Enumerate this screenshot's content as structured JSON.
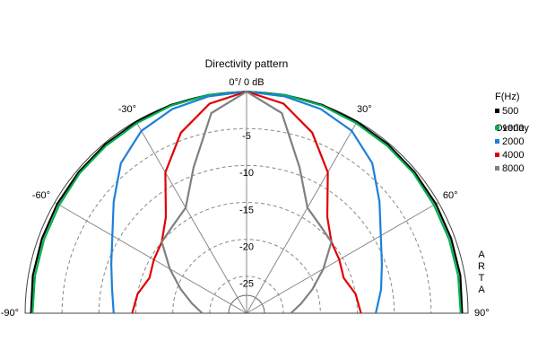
{
  "chart_data": {
    "type": "polar-half",
    "title": "Directivity pattern",
    "legend_title": "F(Hz)",
    "overlay_title": "Overlay",
    "watermark": "ARTA",
    "rlim": [
      -30,
      0
    ],
    "rticks": [
      -5,
      -10,
      -15,
      -20,
      -25
    ],
    "angle_ticks": [
      {
        "value": -90,
        "label": "-90°"
      },
      {
        "value": -60,
        "label": "-60°"
      },
      {
        "value": -30,
        "label": "-30°"
      },
      {
        "value": 0,
        "label": "0°/ 0 dB"
      },
      {
        "value": 30,
        "label": "30°"
      },
      {
        "value": 60,
        "label": "60°"
      },
      {
        "value": 90,
        "label": "90°"
      }
    ],
    "angles": [
      -90,
      -80,
      -70,
      -60,
      -50,
      -40,
      -30,
      -20,
      -10,
      0,
      10,
      20,
      30,
      40,
      50,
      60,
      70,
      80,
      90
    ],
    "series": [
      {
        "name": "500",
        "color": "#000000",
        "values": [
          -0.8,
          -0.6,
          -0.5,
          -0.4,
          -0.3,
          -0.2,
          -0.1,
          0,
          0,
          0,
          0,
          0,
          -0.1,
          -0.2,
          -0.3,
          -0.4,
          -0.5,
          -0.6,
          -0.8
        ]
      },
      {
        "name": "1000",
        "color": "#00b050",
        "values": [
          -1,
          -0.9,
          -0.8,
          -0.7,
          -0.5,
          -0.4,
          -0.3,
          -0.1,
          0,
          0,
          0,
          -0.1,
          -0.3,
          -0.4,
          -0.5,
          -0.7,
          -0.8,
          -0.9,
          -1
        ]
      },
      {
        "name": "2000",
        "color": "#1e7fd8",
        "values": [
          -12,
          -11.5,
          -10.5,
          -9,
          -6.5,
          -3.5,
          -1.5,
          -0.6,
          -0.2,
          0,
          -0.2,
          -0.6,
          -1.5,
          -3.5,
          -6.5,
          -9,
          -10.5,
          -11.5,
          -12.5
        ]
      },
      {
        "name": "4000",
        "color": "#e00000",
        "values": [
          -14.5,
          -15,
          -16,
          -15.5,
          -15,
          -13,
          -8,
          -4,
          -1.2,
          0,
          -1.2,
          -4,
          -8,
          -13,
          -15,
          -15.5,
          -16,
          -15,
          -14.5
        ]
      },
      {
        "name": "8000",
        "color": "#808080",
        "values": [
          -24,
          -22.5,
          -20.5,
          -18,
          -15,
          -14.5,
          -13.5,
          -9,
          -2.5,
          0,
          -2.5,
          -9,
          -13.5,
          -14.5,
          -15,
          -18,
          -20.5,
          -22.5,
          -24
        ]
      }
    ]
  }
}
